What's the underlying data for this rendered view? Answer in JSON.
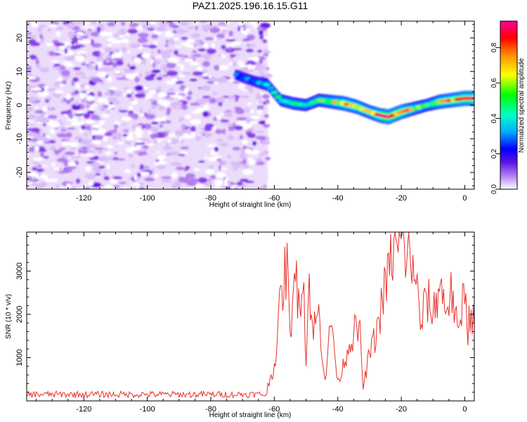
{
  "figure_title": "PAZ1.2025.196.16.15.G11",
  "chart_data": [
    {
      "type": "heatmap",
      "xlabel": "Height of straight line (km)",
      "ylabel": "Frequency (Hz)",
      "xlim": [
        -138,
        3
      ],
      "ylim": [
        -25,
        25
      ],
      "xticks": [
        -120,
        -100,
        -80,
        -60,
        -40,
        -20,
        0
      ],
      "yticks": [
        -20,
        -10,
        0,
        10,
        20
      ],
      "colorbar": {
        "label": "Normalized spectral amplitude",
        "range": [
          0,
          0.95
        ],
        "ticks": [
          0.0,
          0.2,
          0.4,
          0.6,
          0.8
        ]
      },
      "noise_region": {
        "x_from": -138,
        "x_to": -62,
        "amplitude": 0.1
      },
      "ridge": {
        "x": [
          -72,
          -66,
          -62,
          -58,
          -54,
          -50,
          -46,
          -42,
          -38,
          -34,
          -30,
          -27,
          -24,
          -20,
          -16,
          -12,
          -8,
          -4,
          0,
          3
        ],
        "y": [
          9,
          7,
          6,
          1.5,
          0.5,
          0,
          1.5,
          1,
          0.5,
          -0.5,
          -2,
          -3,
          -3.5,
          -2,
          -1,
          0,
          1,
          1.5,
          2,
          2
        ],
        "amplitude": [
          0.3,
          0.35,
          0.45,
          0.5,
          0.55,
          0.5,
          0.6,
          0.7,
          0.85,
          0.8,
          0.75,
          0.9,
          0.95,
          0.9,
          0.7,
          0.55,
          0.8,
          0.85,
          0.95,
          0.9
        ]
      }
    },
    {
      "type": "line",
      "xlabel": "Height of straight line (km)",
      "ylabel": "SNR (10 * v/v)",
      "xlim": [
        -138,
        3
      ],
      "ylim": [
        0,
        3900
      ],
      "xticks": [
        -120,
        -100,
        -80,
        -60,
        -40,
        -20,
        0
      ],
      "yticks": [
        1000,
        2000,
        3000
      ],
      "color": "#e8302a",
      "series": [
        {
          "x": [
            -138,
            -120,
            -100,
            -80,
            -66,
            -64,
            -62,
            -60,
            -58,
            -56,
            -55,
            -54,
            -52,
            -51,
            -50,
            -49,
            -48,
            -46,
            -44,
            -42,
            -40,
            -38,
            -36,
            -34,
            -33,
            -32,
            -30,
            -28,
            -26,
            -24,
            -22,
            -21,
            -20,
            -19,
            -18,
            -17,
            -16,
            -14,
            -12,
            -10,
            -8,
            -6,
            -4,
            -2,
            0,
            1,
            2,
            3
          ],
          "y": [
            150,
            150,
            150,
            150,
            200,
            250,
            350,
            800,
            2300,
            3200,
            1300,
            3100,
            2200,
            3300,
            900,
            2800,
            1600,
            2000,
            500,
            1900,
            400,
            900,
            1400,
            1700,
            1500,
            300,
            1100,
            1500,
            2300,
            3000,
            3600,
            3300,
            3850,
            3400,
            3600,
            2900,
            3300,
            1700,
            2400,
            2000,
            2700,
            2200,
            2500,
            1400,
            2800,
            1700,
            2100,
            1700
          ]
        }
      ]
    }
  ]
}
